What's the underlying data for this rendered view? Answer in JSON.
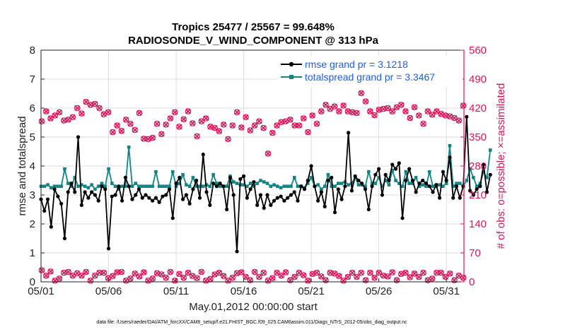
{
  "title_line1": "Tropics 25477 / 25567 = 99.648%",
  "title_line2": "RADIOSONDE_V_WIND_COMPONENT @ 313 hPa",
  "footer": "data file: /Users/raeder/DAI/ATM_forcXX/CAM6_setup/f.e21.FHIST_BGC.f09_025.CAM6assim.011/Diags_NTrS_2012-05/obs_diag_output.nc",
  "colors": {
    "rmse": "#000000",
    "spread": "#138484",
    "obs": "#d6175a",
    "legend_text": "#1f5fe0"
  },
  "chart_data": {
    "type": "line",
    "xlabel": "May.01,2012 00:00:00 start",
    "ylabel_left": "rmse and totalspread",
    "ylabel_right": "# of obs: o=possible; ×=assimilated",
    "xlim": [
      1,
      32.3
    ],
    "ylim_left": [
      0,
      8
    ],
    "ylim_right": [
      0,
      560
    ],
    "x_ticks": [
      1,
      6,
      11,
      16,
      21,
      26,
      31
    ],
    "x_tick_labels": [
      "05/01",
      "05/06",
      "05/11",
      "05/16",
      "05/21",
      "05/26",
      "05/31"
    ],
    "y_ticks_left": [
      "0",
      "1",
      "2",
      "3",
      "4",
      "5",
      "6",
      "7",
      "8"
    ],
    "y_ticks_right": [
      "0",
      "70",
      "140",
      "210",
      "280",
      "350",
      "420",
      "490",
      "560"
    ],
    "legend": {
      "location": "top-right",
      "entries": [
        "rmse grand pr = 3.1218",
        "totalspread grand pr = 3.3467"
      ]
    },
    "x_start": 1.0,
    "x_step": 0.25,
    "series": [
      {
        "name": "rmse",
        "values": [
          2.85,
          2.45,
          2.85,
          1.9,
          3.2,
          2.95,
          2.7,
          1.5,
          3.1,
          3.4,
          3.1,
          5.0,
          2.65,
          3.1,
          2.9,
          3.1,
          3.0,
          2.8,
          3.3,
          3.2,
          1.15,
          2.95,
          3.0,
          3.3,
          2.8,
          3.6,
          3.3,
          2.85,
          3.0,
          3.2,
          2.9,
          3.0,
          2.9,
          2.8,
          2.9,
          2.75,
          2.95,
          3.0,
          3.2,
          2.2,
          3.4,
          3.6,
          2.85,
          3.0,
          2.7,
          3.2,
          3.5,
          2.9,
          4.4,
          3.1,
          2.65,
          3.4,
          3.3,
          3.4,
          3.3,
          2.5,
          3.6,
          3.0,
          1.05,
          3.55,
          3.65,
          2.9,
          3.2,
          3.45,
          2.65,
          3.0,
          2.55,
          3.0,
          2.65,
          2.8,
          2.9,
          2.95,
          2.8,
          2.9,
          3.0,
          3.1,
          2.8,
          3.3,
          3.2,
          3.5,
          4.0,
          3.3,
          2.8,
          3.1,
          2.6,
          3.5,
          3.6,
          2.4,
          3.2,
          2.85,
          3.3,
          5.15,
          3.15,
          3.65,
          3.5,
          3.4,
          3.2,
          2.5,
          3.3,
          3.7,
          3.9,
          3.0,
          3.7,
          3.5,
          4.05,
          3.9,
          4.1,
          2.2,
          3.5,
          3.9,
          3.5,
          3.1,
          3.4,
          3.5,
          3.4,
          3.3,
          3.1,
          3.35,
          2.9,
          3.8,
          3.5,
          4.3,
          2.9,
          3.3,
          2.9,
          3.3,
          5.7,
          3.15,
          3.0,
          3.2,
          3.3,
          4.05,
          3.1,
          3.7
        ]
      },
      {
        "name": "totalspread",
        "values": [
          3.3,
          3.3,
          3.35,
          3.25,
          3.3,
          3.3,
          3.3,
          3.9,
          3.4,
          3.3,
          3.6,
          3.3,
          3.35,
          3.3,
          3.25,
          3.35,
          3.2,
          3.3,
          3.4,
          3.3,
          3.9,
          3.4,
          3.3,
          3.2,
          3.3,
          3.3,
          4.65,
          3.3,
          3.4,
          3.3,
          3.3,
          3.3,
          3.3,
          3.3,
          3.8,
          3.3,
          3.3,
          3.3,
          3.3,
          3.8,
          3.3,
          3.4,
          3.7,
          3.35,
          3.3,
          3.6,
          3.3,
          3.3,
          3.3,
          3.35,
          3.3,
          3.7,
          3.4,
          3.3,
          3.3,
          3.3,
          3.65,
          3.45,
          3.4,
          3.35,
          3.35,
          3.3,
          3.4,
          3.3,
          3.4,
          3.5,
          3.45,
          3.4,
          3.3,
          3.35,
          3.3,
          3.25,
          3.3,
          3.3,
          3.3,
          3.6,
          3.3,
          3.3,
          3.25,
          3.4,
          3.6,
          3.3,
          3.35,
          3.2,
          3.3,
          3.7,
          3.3,
          3.3,
          3.4,
          3.4,
          3.45,
          3.35,
          3.4,
          3.6,
          3.35,
          3.35,
          3.3,
          3.8,
          3.4,
          3.4,
          3.6,
          3.3,
          3.5,
          3.35,
          3.85,
          3.5,
          3.4,
          3.3,
          3.8,
          3.4,
          3.4,
          3.6,
          3.3,
          3.35,
          3.3,
          3.8,
          3.3,
          3.3,
          3.35,
          3.3,
          3.4,
          4.7,
          3.3,
          3.4,
          3.4,
          3.3,
          3.5,
          3.9,
          3.6,
          3.3,
          3.4,
          3.8,
          3.6,
          4.55
        ]
      },
      {
        "name": "obs_upper",
        "values": [
          388,
          412,
          395,
          402,
          410,
          390,
          392,
          398,
          420,
          407,
          435,
          428,
          430,
          420,
          405,
          410,
          362,
          378,
          365,
          392,
          382,
          367,
          408,
          346,
          345,
          348,
          382,
          357,
          380,
          395,
          410,
          375,
          393,
          412,
          383,
          352,
          388,
          395,
          375,
          372,
          364,
          380,
          345,
          378,
          410,
          373,
          398,
          366,
          378,
          388,
          372,
          310,
          360,
          378,
          386,
          388,
          392,
          378,
          378,
          395,
          362,
          402,
          382,
          412,
          428,
          418,
          424,
          412,
          426,
          412,
          410,
          408,
          456,
          436,
          412,
          403,
          416,
          418,
          420,
          412,
          422,
          428,
          412,
          396,
          422,
          402,
          382,
          412,
          404,
          412,
          406,
          402,
          400,
          396,
          390,
          426
        ]
      },
      {
        "name": "obs_lower",
        "values": [
          28,
          15,
          25,
          3,
          8,
          22,
          24,
          15,
          21,
          15,
          24,
          3,
          15,
          22,
          22,
          9,
          14,
          23,
          24,
          3,
          8,
          20,
          13,
          23,
          3,
          8,
          21,
          18,
          10,
          24,
          3,
          19,
          10,
          22,
          14,
          9,
          24,
          3,
          7,
          18,
          22,
          14,
          3,
          10,
          21,
          23,
          12,
          4,
          24,
          12,
          22,
          3,
          9,
          22,
          15,
          23,
          4,
          12,
          22,
          16,
          3,
          19,
          22,
          13,
          4,
          22,
          20,
          14,
          3,
          12,
          22,
          12,
          22,
          4,
          22,
          10,
          22,
          15,
          13,
          23,
          4,
          19,
          22,
          11,
          20,
          12,
          22,
          4,
          8,
          22,
          22,
          12,
          20,
          4,
          15,
          10
        ]
      }
    ]
  }
}
